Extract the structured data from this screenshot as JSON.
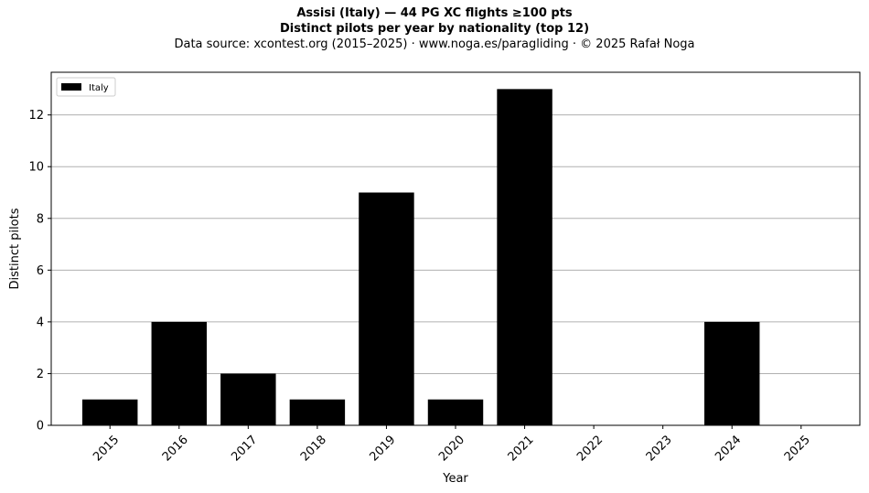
{
  "chart_data": {
    "type": "bar",
    "title": "Assisi (Italy)  —  44 PG XC flights ≥100 pts",
    "subtitle": "Distinct pilots per year by nationality (top 12)",
    "source": "Data source: xcontest.org (2015–2025)  ·  www.noga.es/paragliding  ·  © 2025 Rafał Noga",
    "xlabel": "Year",
    "ylabel": "Distinct pilots",
    "categories": [
      "2015",
      "2016",
      "2017",
      "2018",
      "2019",
      "2020",
      "2021",
      "2022",
      "2023",
      "2024",
      "2025"
    ],
    "series": [
      {
        "name": "Italy",
        "values": [
          1,
          4,
          2,
          1,
          9,
          1,
          13,
          0,
          0,
          4,
          0
        ],
        "color": "#000000"
      }
    ],
    "ylim": [
      0,
      13.65
    ],
    "yticks": [
      0,
      2,
      4,
      6,
      8,
      10,
      12
    ],
    "grid": "y",
    "legend": "top-left"
  }
}
